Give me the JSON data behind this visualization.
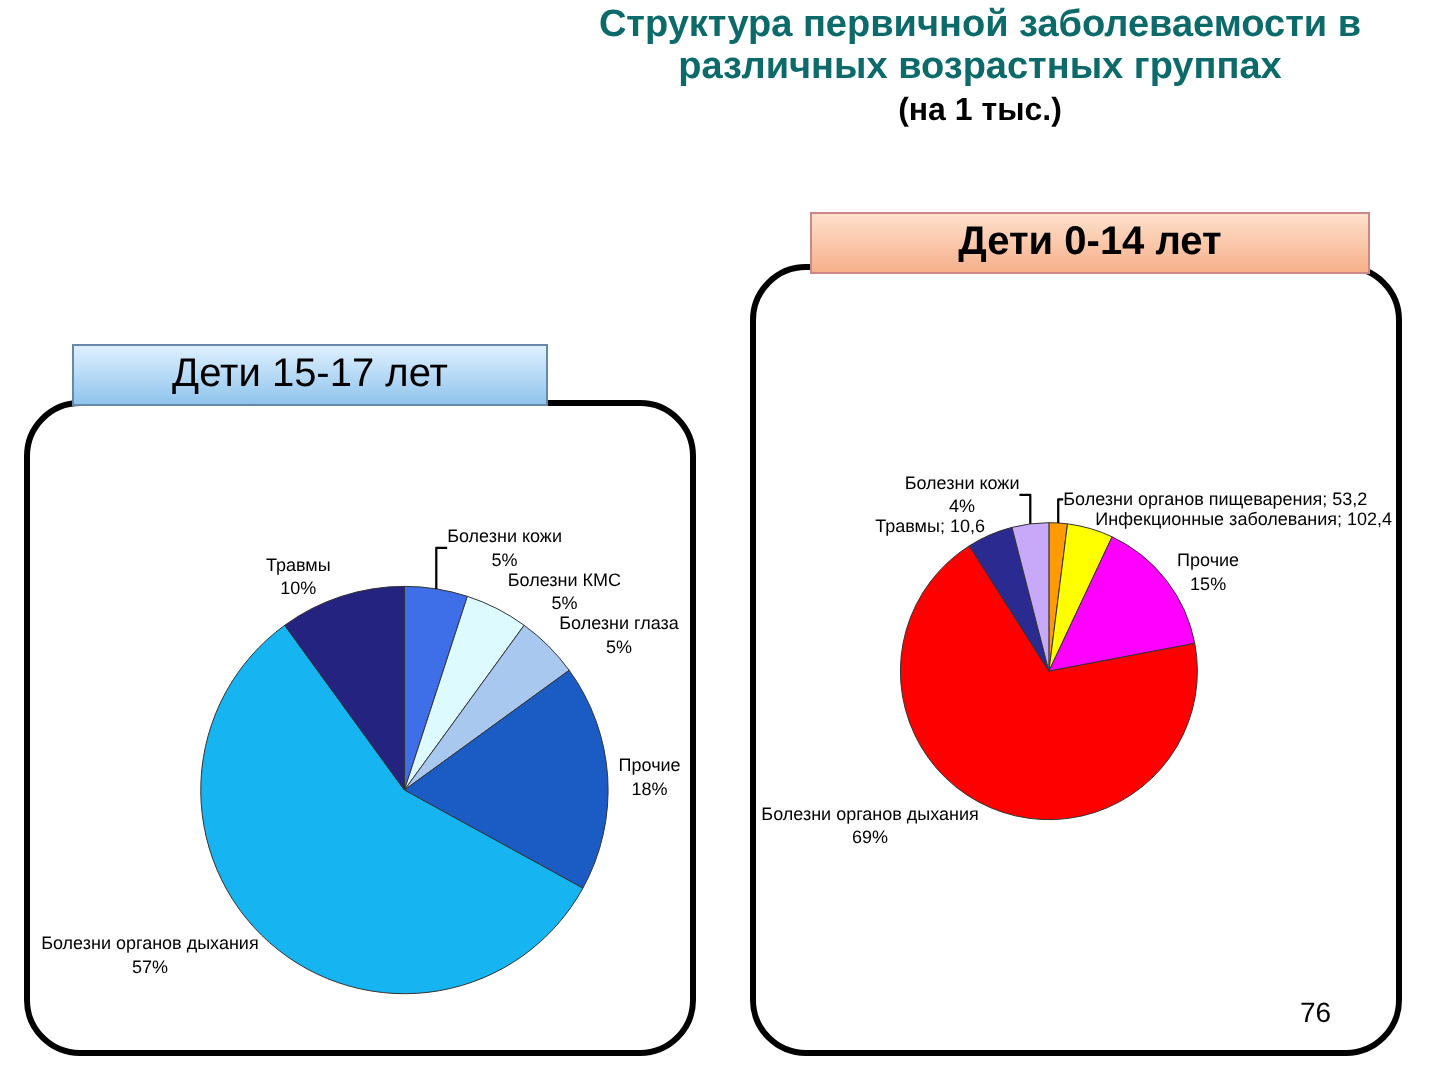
{
  "chart_data": [
    {
      "type": "pie",
      "title": "Дети 0-14 лет",
      "annotations": [
        "Структура первичной заболеваемости в различных возрастных группах",
        "(на 1 тыс.)",
        "76"
      ],
      "categories": [
        "Болезни органов пищеварения; 53,2",
        "Инфекционные заболевания; 102,4",
        "Прочие",
        "Болезни органов дыхания",
        "Травмы; 10,6",
        "Болезни кожи"
      ],
      "values": [
        2,
        5,
        15,
        69,
        5,
        4
      ],
      "value_labels": [
        null,
        null,
        "15%",
        "69%",
        null,
        "4%"
      ],
      "colors": [
        "#ff9a00",
        "#ffff00",
        "#ff00ff",
        "#ff0000",
        "#2a2a90",
        "#c8a8f8"
      ]
    },
    {
      "type": "pie",
      "title": "Дети 15-17 лет",
      "categories": [
        "Болезни кожи",
        "Болезни КМС",
        "Болезни глаза",
        "Прочие",
        "Болезни органов дыхания",
        "Травмы"
      ],
      "values": [
        5,
        5,
        5,
        18,
        57,
        10
      ],
      "value_labels": [
        "5%",
        "5%",
        "5%",
        "18%",
        "57%",
        "10%"
      ],
      "colors": [
        "#3f6fe8",
        "#ddfbff",
        "#a8c8f0",
        "#1b5cc4",
        "#16b4f0",
        "#242480"
      ]
    }
  ]
}
